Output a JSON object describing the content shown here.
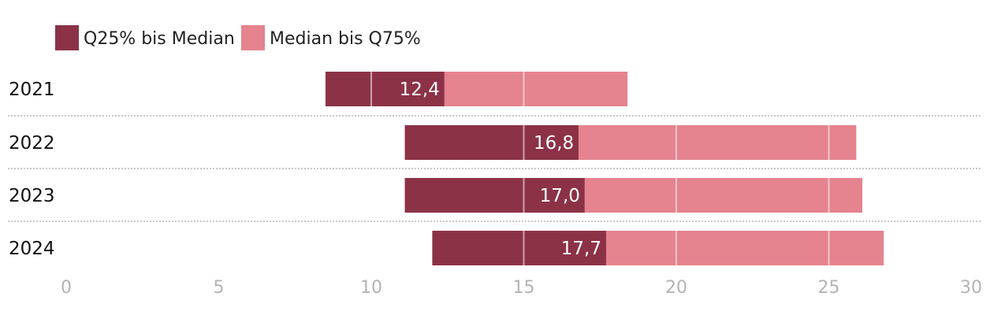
{
  "chart_data": {
    "type": "bar",
    "orientation": "horizontal",
    "stacked": "floating-range",
    "categories": [
      "2021",
      "2022",
      "2023",
      "2024"
    ],
    "series": [
      {
        "name": "Q25% bis Median",
        "color": "#8c3247",
        "start": [
          8.5,
          11.1,
          11.1,
          12.0
        ],
        "end": [
          12.4,
          16.8,
          17.0,
          17.7
        ]
      },
      {
        "name": "Median bis Q75%",
        "color": "#e5838f",
        "start": [
          12.4,
          16.8,
          17.0,
          17.7
        ],
        "end": [
          18.4,
          25.9,
          26.1,
          26.8
        ]
      }
    ],
    "medians": [
      12.4,
      16.8,
      17.0,
      17.7
    ],
    "median_labels": [
      "12,4",
      "16,8",
      "17,0",
      "17,7"
    ],
    "xlim": [
      0,
      30
    ],
    "xticks": [
      0,
      5,
      10,
      15,
      20,
      25,
      30
    ],
    "xtick_labels": [
      "0",
      "5",
      "10",
      "15",
      "20",
      "25",
      "30"
    ],
    "title": "",
    "xlabel": "",
    "ylabel": "",
    "legend_position": "top-left",
    "grid": "vertical-lines-over-bars",
    "row_separators": "dotted"
  }
}
